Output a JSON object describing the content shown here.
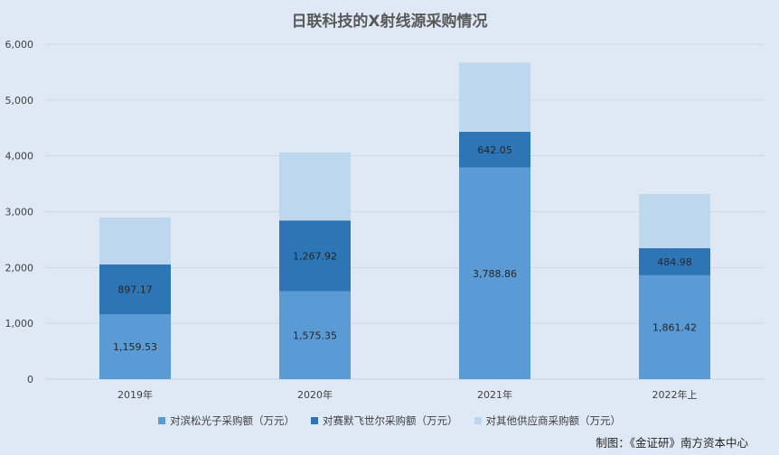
{
  "chart_data": {
    "type": "bar",
    "stacked": true,
    "title": "日联科技的X射线源采购情况",
    "categories": [
      "2019年",
      "2020年",
      "2021年",
      "2022年上"
    ],
    "series": [
      {
        "name": "对滨松光子采购额（万元）",
        "color": "#5b9bd5",
        "values": [
          1159.53,
          1575.35,
          3788.86,
          1861.42
        ],
        "labels": [
          "1,159.53",
          "1,575.35",
          "3,788.86",
          "1,861.42"
        ]
      },
      {
        "name": "对赛默飞世尔采购额（万元）",
        "color": "#2e75b6",
        "values": [
          897.17,
          1267.92,
          642.05,
          484.98
        ],
        "labels": [
          "897.17",
          "1,267.92",
          "642.05",
          "484.98"
        ]
      },
      {
        "name": "对其他供应商采购额（万元）",
        "color": "#bdd7ee",
        "values": [
          840,
          1220,
          1240,
          970
        ],
        "labels": []
      }
    ],
    "yticks": [
      "0",
      "1,000",
      "2,000",
      "3,000",
      "4,000",
      "5,000",
      "6,000"
    ],
    "ylim": [
      0,
      6000
    ],
    "grid": true,
    "legend_position": "bottom"
  },
  "source_note": "制图：《金证研》南方资本中心"
}
